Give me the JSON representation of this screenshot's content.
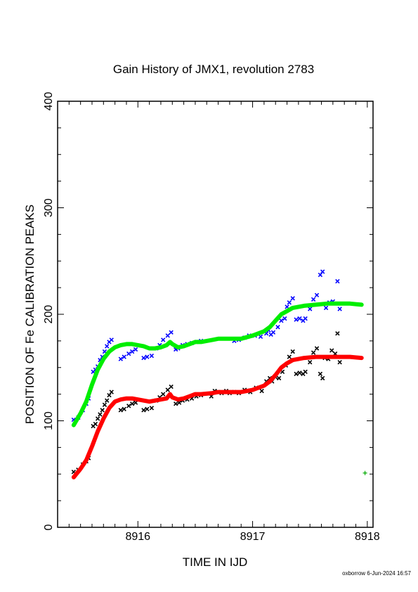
{
  "chart_data": {
    "type": "scatter",
    "title": "Gain History of JMX1, revolution 2783",
    "xlabel": "TIME IN IJD",
    "ylabel": "POSITION OF Fe CALIBRATION PEAKS",
    "xlim": [
      8915.3,
      8918.05
    ],
    "ylim": [
      0,
      400
    ],
    "x_ticks": [
      8916,
      8917,
      8918
    ],
    "x_tick_labels": [
      "8916",
      "8917",
      "8918"
    ],
    "y_ticks": [
      0,
      100,
      200,
      300,
      400
    ],
    "y_tick_labels": [
      "0",
      "100",
      "200",
      "300",
      "400"
    ],
    "grid": false,
    "series": [
      {
        "color": "#0000ff",
        "kind": "points",
        "points": [
          [
            8915.44,
            101
          ],
          [
            8915.48,
            103
          ],
          [
            8915.52,
            110
          ],
          [
            8915.55,
            116
          ],
          [
            8915.57,
            121
          ],
          [
            8915.61,
            146
          ],
          [
            8915.63,
            148
          ],
          [
            8915.65,
            151
          ],
          [
            8915.67,
            157
          ],
          [
            8915.69,
            160
          ],
          [
            8915.71,
            165
          ],
          [
            8915.73,
            170
          ],
          [
            8915.75,
            174
          ],
          [
            8915.77,
            176
          ],
          [
            8915.85,
            158
          ],
          [
            8915.88,
            160
          ],
          [
            8915.92,
            163
          ],
          [
            8915.95,
            165
          ],
          [
            8915.98,
            167
          ],
          [
            8916.05,
            159
          ],
          [
            8916.08,
            160
          ],
          [
            8916.12,
            161
          ],
          [
            8916.16,
            168
          ],
          [
            8916.19,
            171
          ],
          [
            8916.22,
            176
          ],
          [
            8916.26,
            180
          ],
          [
            8916.29,
            183
          ],
          [
            8916.33,
            167
          ],
          [
            8916.35,
            168
          ],
          [
            8916.39,
            171
          ],
          [
            8916.43,
            172
          ],
          [
            8916.47,
            173
          ],
          [
            8916.51,
            174
          ],
          [
            8916.55,
            175
          ],
          [
            8916.84,
            175
          ],
          [
            8916.88,
            176
          ],
          [
            8916.93,
            178
          ],
          [
            8916.97,
            180
          ],
          [
            8917.02,
            180
          ],
          [
            8917.07,
            179
          ],
          [
            8917.12,
            182
          ],
          [
            8917.14,
            185
          ],
          [
            8917.16,
            181
          ],
          [
            8917.18,
            183
          ],
          [
            8917.22,
            188
          ],
          [
            8917.25,
            194
          ],
          [
            8917.28,
            196
          ],
          [
            8917.3,
            207
          ],
          [
            8917.32,
            211
          ],
          [
            8917.35,
            215
          ],
          [
            8917.38,
            195
          ],
          [
            8917.41,
            196
          ],
          [
            8917.44,
            194
          ],
          [
            8917.46,
            196
          ],
          [
            8917.5,
            205
          ],
          [
            8917.53,
            214
          ],
          [
            8917.56,
            218
          ],
          [
            8917.59,
            237
          ],
          [
            8917.61,
            240
          ],
          [
            8917.64,
            206
          ],
          [
            8917.67,
            211
          ],
          [
            8917.7,
            212
          ],
          [
            8917.74,
            231
          ],
          [
            8917.76,
            205
          ]
        ]
      },
      {
        "color": "#000000",
        "kind": "points",
        "points": [
          [
            8915.44,
            52
          ],
          [
            8915.48,
            54
          ],
          [
            8915.52,
            59
          ],
          [
            8915.55,
            62
          ],
          [
            8915.57,
            65
          ],
          [
            8915.61,
            95
          ],
          [
            8915.63,
            97
          ],
          [
            8915.65,
            102
          ],
          [
            8915.67,
            106
          ],
          [
            8915.69,
            110
          ],
          [
            8915.71,
            115
          ],
          [
            8915.73,
            119
          ],
          [
            8915.75,
            124
          ],
          [
            8915.77,
            127
          ],
          [
            8915.85,
            110
          ],
          [
            8915.88,
            111
          ],
          [
            8915.92,
            114
          ],
          [
            8915.95,
            116
          ],
          [
            8915.98,
            117
          ],
          [
            8916.05,
            110
          ],
          [
            8916.08,
            111
          ],
          [
            8916.12,
            112
          ],
          [
            8916.16,
            119
          ],
          [
            8916.19,
            122
          ],
          [
            8916.22,
            125
          ],
          [
            8916.26,
            129
          ],
          [
            8916.29,
            132
          ],
          [
            8916.33,
            116
          ],
          [
            8916.36,
            117
          ],
          [
            8916.39,
            119
          ],
          [
            8916.43,
            120
          ],
          [
            8916.47,
            121
          ],
          [
            8916.51,
            123
          ],
          [
            8916.55,
            124
          ],
          [
            8916.64,
            123
          ],
          [
            8916.67,
            128
          ],
          [
            8916.7,
            127
          ],
          [
            8916.73,
            126
          ],
          [
            8916.77,
            128
          ],
          [
            8916.8,
            126
          ],
          [
            8916.84,
            127
          ],
          [
            8916.88,
            126
          ],
          [
            8916.93,
            129
          ],
          [
            8916.98,
            127
          ],
          [
            8917.03,
            131
          ],
          [
            8917.08,
            128
          ],
          [
            8917.12,
            137
          ],
          [
            8917.15,
            140
          ],
          [
            8917.17,
            137
          ],
          [
            8917.2,
            141
          ],
          [
            8917.23,
            140
          ],
          [
            8917.26,
            146
          ],
          [
            8917.29,
            152
          ],
          [
            8917.32,
            160
          ],
          [
            8917.35,
            165
          ],
          [
            8917.38,
            144
          ],
          [
            8917.41,
            145
          ],
          [
            8917.44,
            144
          ],
          [
            8917.46,
            146
          ],
          [
            8917.5,
            155
          ],
          [
            8917.53,
            164
          ],
          [
            8917.56,
            168
          ],
          [
            8917.59,
            144
          ],
          [
            8917.61,
            140
          ],
          [
            8917.63,
            159
          ],
          [
            8917.66,
            158
          ],
          [
            8917.69,
            166
          ],
          [
            8917.72,
            163
          ],
          [
            8917.74,
            182
          ],
          [
            8917.76,
            155
          ]
        ]
      },
      {
        "color": "#00ee00",
        "kind": "line",
        "points": [
          [
            8915.44,
            96
          ],
          [
            8915.5,
            107
          ],
          [
            8915.55,
            118
          ],
          [
            8915.6,
            134
          ],
          [
            8915.65,
            148
          ],
          [
            8915.7,
            158
          ],
          [
            8915.75,
            165
          ],
          [
            8915.8,
            169
          ],
          [
            8915.85,
            171
          ],
          [
            8915.9,
            172
          ],
          [
            8915.95,
            172
          ],
          [
            8916.0,
            171
          ],
          [
            8916.05,
            170
          ],
          [
            8916.1,
            168
          ],
          [
            8916.15,
            168
          ],
          [
            8916.2,
            169
          ],
          [
            8916.25,
            171
          ],
          [
            8916.28,
            174
          ],
          [
            8916.3,
            172
          ],
          [
            8916.35,
            169
          ],
          [
            8916.4,
            170
          ],
          [
            8916.45,
            172
          ],
          [
            8916.5,
            174
          ],
          [
            8916.55,
            174
          ],
          [
            8916.65,
            176
          ],
          [
            8916.7,
            177
          ],
          [
            8916.8,
            177
          ],
          [
            8916.9,
            177
          ],
          [
            8917.0,
            180
          ],
          [
            8917.1,
            184
          ],
          [
            8917.15,
            188
          ],
          [
            8917.2,
            194
          ],
          [
            8917.25,
            200
          ],
          [
            8917.3,
            203
          ],
          [
            8917.35,
            206
          ],
          [
            8917.45,
            208
          ],
          [
            8917.55,
            209
          ],
          [
            8917.65,
            210
          ],
          [
            8917.75,
            210
          ],
          [
            8917.85,
            210
          ],
          [
            8917.95,
            209
          ]
        ]
      },
      {
        "color": "#ff0000",
        "kind": "line",
        "points": [
          [
            8915.44,
            47
          ],
          [
            8915.5,
            55
          ],
          [
            8915.55,
            63
          ],
          [
            8915.6,
            76
          ],
          [
            8915.65,
            90
          ],
          [
            8915.7,
            102
          ],
          [
            8915.75,
            112
          ],
          [
            8915.8,
            118
          ],
          [
            8915.85,
            120
          ],
          [
            8915.9,
            121
          ],
          [
            8915.95,
            121
          ],
          [
            8916.0,
            120
          ],
          [
            8916.05,
            119
          ],
          [
            8916.1,
            118
          ],
          [
            8916.15,
            119
          ],
          [
            8916.2,
            120
          ],
          [
            8916.25,
            121
          ],
          [
            8916.28,
            125
          ],
          [
            8916.3,
            122
          ],
          [
            8916.35,
            120
          ],
          [
            8916.4,
            121
          ],
          [
            8916.45,
            123
          ],
          [
            8916.5,
            125
          ],
          [
            8916.55,
            125
          ],
          [
            8916.65,
            126
          ],
          [
            8916.7,
            127
          ],
          [
            8916.8,
            127
          ],
          [
            8916.9,
            127
          ],
          [
            8917.0,
            129
          ],
          [
            8917.1,
            133
          ],
          [
            8917.15,
            137
          ],
          [
            8917.2,
            143
          ],
          [
            8917.25,
            150
          ],
          [
            8917.3,
            154
          ],
          [
            8917.35,
            157
          ],
          [
            8917.45,
            159
          ],
          [
            8917.55,
            160
          ],
          [
            8917.65,
            160
          ],
          [
            8917.75,
            160
          ],
          [
            8917.85,
            160
          ],
          [
            8917.95,
            159
          ]
        ]
      },
      {
        "color": "#00aa00",
        "kind": "marker",
        "points": [
          [
            8917.98,
            51
          ]
        ]
      }
    ],
    "footer": "oxborrow  6-Jun-2024 16:57"
  }
}
